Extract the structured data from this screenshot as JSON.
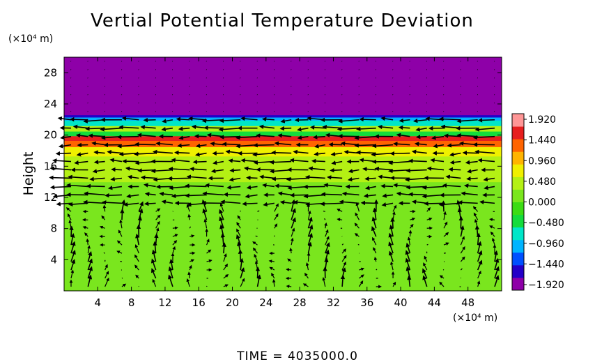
{
  "chart_data": {
    "type": "heatmap",
    "title": "Vertial Potential Temperature Deviation",
    "ylabel": "Height",
    "x_unit": "(×10⁴ m)",
    "y_unit": "(×10⁴ m)",
    "xlim": [
      0,
      52
    ],
    "ylim": [
      0,
      30
    ],
    "x_ticks": [
      4,
      8,
      12,
      16,
      20,
      24,
      28,
      32,
      36,
      40,
      44,
      48
    ],
    "y_ticks": [
      4,
      8,
      12,
      16,
      20,
      24,
      28
    ],
    "colorbar": {
      "ticks": [
        "1.920",
        "1.440",
        "0.960",
        "0.480",
        "0.000",
        "−0.480",
        "−0.960",
        "−1.440",
        "−1.920"
      ],
      "range": [
        -1.92,
        1.92
      ],
      "colors": [
        "#8e00a8",
        "#2300c8",
        "#0050ff",
        "#00b4ff",
        "#00e6c8",
        "#14dc3c",
        "#3cdc14",
        "#7ae61e",
        "#b4f014",
        "#f0f000",
        "#ffb400",
        "#ff6400",
        "#e61e1e",
        "#ff9696"
      ]
    },
    "bands": [
      {
        "y0": 0,
        "y1": 11,
        "value": 0.0
      },
      {
        "y0": 11,
        "y1": 14,
        "value": 0.22
      },
      {
        "y0": 14,
        "y1": 17.3,
        "value": 0.36
      },
      {
        "y0": 17.3,
        "y1": 18.5,
        "value": 0.8
      },
      {
        "y0": 18.5,
        "y1": 19.3,
        "value": 1.2
      },
      {
        "y0": 19.3,
        "y1": 19.9,
        "value": 1.6
      },
      {
        "y0": 19.9,
        "y1": 20.5,
        "value": -0.3
      },
      {
        "y0": 20.5,
        "y1": 21.2,
        "value": 0.5
      },
      {
        "y0": 21.2,
        "y1": 21.9,
        "value": -0.55
      },
      {
        "y0": 21.9,
        "y1": 22.3,
        "value": -1.05
      },
      {
        "y0": 22.3,
        "y1": 22.6,
        "value": -1.6
      },
      {
        "y0": 22.6,
        "y1": 30,
        "value": -1.92
      }
    ],
    "footer": "TIME  =  4035000.0"
  }
}
